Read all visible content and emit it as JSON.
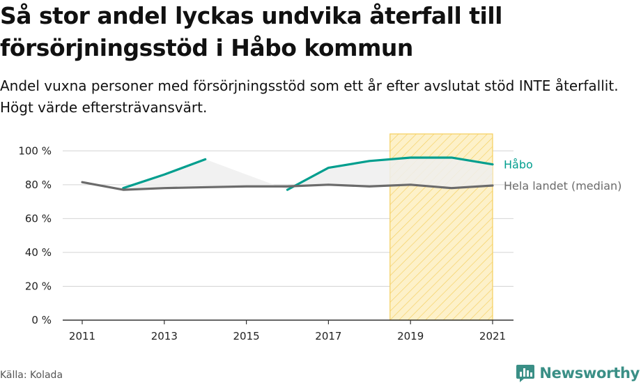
{
  "header": {
    "title": "Så stor andel lyckas undvika återfall till försörjningsstöd i Håbo kommun",
    "subtitle": "Andel vuxna personer med försörjningsstöd som ett år efter avslutat stöd INTE återfallit. Högt värde eftersträvansvärt."
  },
  "footer": {
    "source": "Källa: Kolada",
    "brand": "Newsworthy"
  },
  "colors": {
    "habo": "#009e8e",
    "national": "#6b6b6b",
    "highlight_fill": "#fdf1c9",
    "highlight_stripe": "#f5cf5e",
    "axis": "#333333",
    "grid": "#d4d4d4",
    "area_fill": "#eeeeee",
    "brand": "#3a8f86"
  },
  "chart_data": {
    "type": "line",
    "x_ticks": [
      2011,
      2013,
      2015,
      2017,
      2019,
      2021
    ],
    "y_ticks": [
      0,
      20,
      40,
      60,
      80,
      100
    ],
    "y_tick_labels": [
      "0 %",
      "20 %",
      "40 %",
      "60 %",
      "80 %",
      "100 %"
    ],
    "xlim": [
      2011,
      2021
    ],
    "ylim": [
      0,
      110
    ],
    "grid": "horizontal",
    "highlight_range": [
      2018.5,
      2021
    ],
    "series": [
      {
        "name": "Håbo",
        "key": "habo",
        "segments": [
          [
            [
              2012,
              78
            ],
            [
              2013,
              86
            ],
            [
              2014,
              95
            ]
          ],
          [
            [
              2016,
              77
            ],
            [
              2017,
              90
            ],
            [
              2018,
              94
            ],
            [
              2019,
              96
            ],
            [
              2020,
              96
            ],
            [
              2021,
              92
            ]
          ]
        ]
      },
      {
        "name": "Hela landet (median)",
        "key": "national",
        "segments": [
          [
            [
              2011,
              81.5
            ],
            [
              2012,
              77
            ],
            [
              2013,
              78
            ],
            [
              2014,
              78.5
            ],
            [
              2015,
              79
            ],
            [
              2016,
              79
            ],
            [
              2017,
              80
            ],
            [
              2018,
              79
            ],
            [
              2019,
              80
            ],
            [
              2020,
              78
            ],
            [
              2021,
              79.5
            ]
          ]
        ]
      }
    ]
  }
}
